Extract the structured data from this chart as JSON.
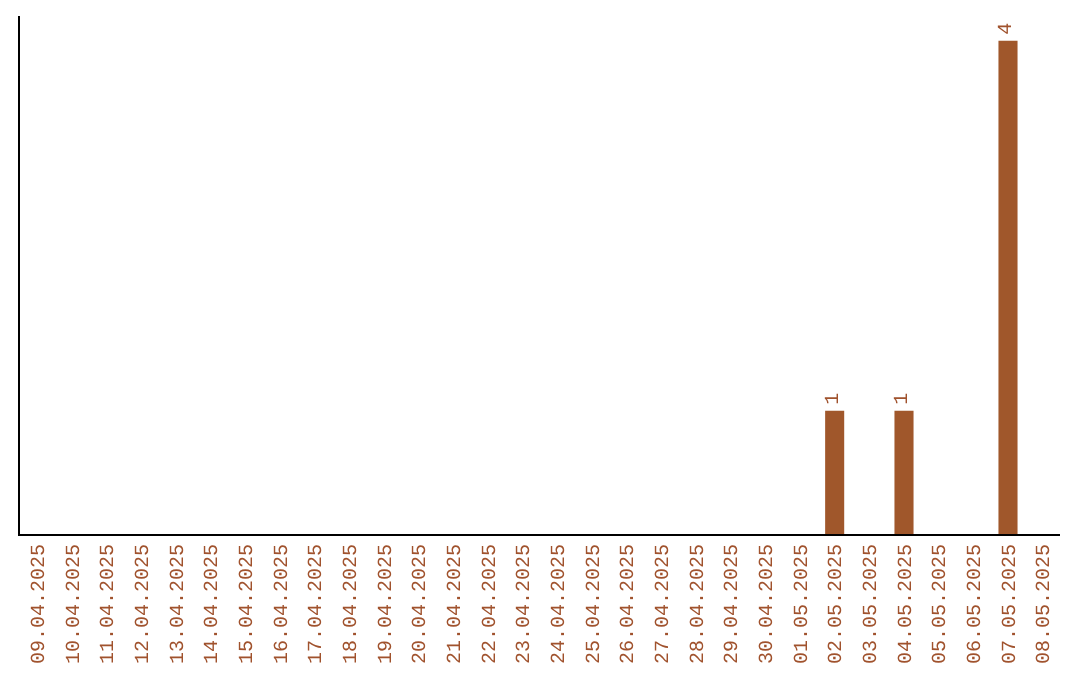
{
  "chart_data": {
    "type": "bar",
    "categories": [
      "09.04.2025",
      "10.04.2025",
      "11.04.2025",
      "12.04.2025",
      "13.04.2025",
      "14.04.2025",
      "15.04.2025",
      "16.04.2025",
      "17.04.2025",
      "18.04.2025",
      "19.04.2025",
      "20.04.2025",
      "21.04.2025",
      "22.04.2025",
      "23.04.2025",
      "24.04.2025",
      "25.04.2025",
      "26.04.2025",
      "27.04.2025",
      "28.04.2025",
      "29.04.2025",
      "30.04.2025",
      "01.05.2025",
      "02.05.2025",
      "03.05.2025",
      "04.05.2025",
      "05.05.2025",
      "06.05.2025",
      "07.05.2025",
      "08.05.2025"
    ],
    "values": [
      null,
      null,
      null,
      null,
      null,
      null,
      null,
      null,
      null,
      null,
      null,
      null,
      null,
      null,
      null,
      null,
      null,
      null,
      null,
      null,
      null,
      null,
      null,
      1,
      null,
      1,
      null,
      null,
      4,
      null
    ],
    "color": "#a0572b",
    "data_labels": true,
    "tick_labels": "x"
  }
}
